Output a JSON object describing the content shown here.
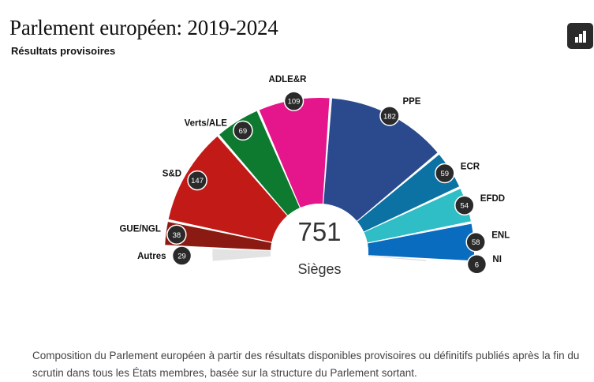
{
  "header": {
    "title": "Parlement européen: 2019-2024",
    "subtitle": "Résultats provisoires"
  },
  "toolbar": {
    "chart_icon": "bar-chart-icon"
  },
  "chart_data": {
    "type": "pie",
    "total": "751",
    "unit_label": "Sièges",
    "series": [
      {
        "name": "Autres",
        "value": 29,
        "color": "#e3e3e3"
      },
      {
        "name": "GUE/NGL",
        "value": 38,
        "color": "#8b1a12"
      },
      {
        "name": "S&D",
        "value": 147,
        "color": "#c21b17"
      },
      {
        "name": "Verts/ALE",
        "value": 69,
        "color": "#0e7a30"
      },
      {
        "name": "ADLE&R",
        "value": 109,
        "color": "#e5158b"
      },
      {
        "name": "PPE",
        "value": 182,
        "color": "#2b4a8e"
      },
      {
        "name": "ECR",
        "value": 59,
        "color": "#0b72a3"
      },
      {
        "name": "EFDD",
        "value": 54,
        "color": "#2fbdc6"
      },
      {
        "name": "ENL",
        "value": 58,
        "color": "#0a6cbf"
      },
      {
        "name": "NI",
        "value": 6,
        "color": "#d8d8d8"
      }
    ]
  },
  "caption": "Composition du Parlement européen à partir des résultats disponibles provisoires ou définitifs publiés après la fin du scrutin dans tous les États membres, basée sur la structure du Parlement sortant."
}
